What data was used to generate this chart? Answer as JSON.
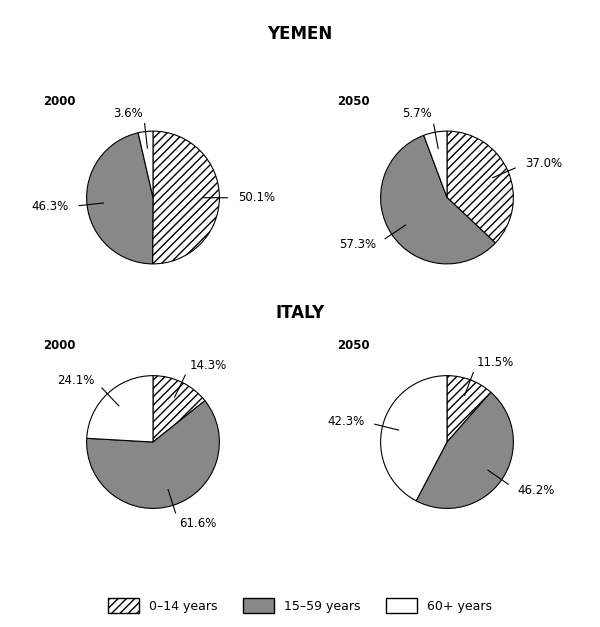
{
  "title_yemen": "YEMEN",
  "title_italy": "ITALY",
  "charts": {
    "yemen_2000": {
      "label": "2000",
      "values": [
        50.1,
        46.3,
        3.6
      ],
      "pct_labels": [
        "50.1%",
        "46.3%",
        "3.6%"
      ],
      "label_angles": [
        315,
        200,
        95
      ]
    },
    "yemen_2050": {
      "label": "2050",
      "values": [
        37.0,
        57.3,
        5.7
      ],
      "pct_labels": [
        "37.0%",
        "57.3%",
        "5.7%"
      ],
      "label_angles": [
        305,
        195,
        90
      ]
    },
    "italy_2000": {
      "label": "2000",
      "values": [
        14.3,
        61.6,
        24.1
      ],
      "pct_labels": [
        "14.3%",
        "61.6%",
        "24.1%"
      ],
      "label_angles": [
        25,
        270,
        170
      ]
    },
    "italy_2050": {
      "label": "2050",
      "values": [
        11.5,
        46.2,
        42.3
      ],
      "pct_labels": [
        "11.5%",
        "46.2%",
        "42.3%"
      ],
      "label_angles": [
        25,
        290,
        180
      ]
    }
  },
  "slice_facecolors": [
    "white",
    "#888888",
    "white"
  ],
  "slice_hatches": [
    "////",
    null,
    null
  ],
  "legend_labels": [
    "0–14 years",
    "15–59 years",
    "60+ years"
  ],
  "background_color": "#ffffff"
}
